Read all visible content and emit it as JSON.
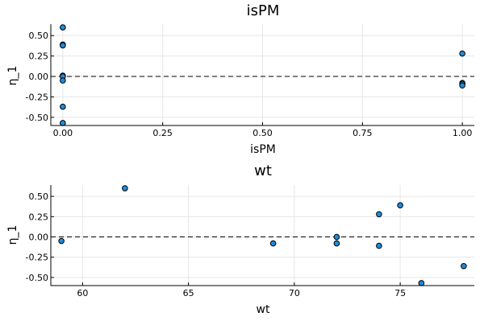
{
  "chart_data": [
    {
      "type": "scatter",
      "title": "isPM",
      "xlabel": "isPM",
      "ylabel": "η_1",
      "xlim": [
        -0.03,
        1.03
      ],
      "ylim": [
        -0.6,
        0.64
      ],
      "xticks": [
        0.0,
        0.25,
        0.5,
        0.75,
        1.0
      ],
      "xtick_labels": [
        "0.00",
        "0.25",
        "0.50",
        "0.75",
        "1.00"
      ],
      "yticks": [
        -0.5,
        -0.25,
        0.0,
        0.25,
        0.5
      ],
      "ytick_labels": [
        "-0.50",
        "-0.25",
        "0.00",
        "0.25",
        "0.50"
      ],
      "grid": true,
      "reference_line": 0,
      "x": [
        0,
        0,
        0,
        0,
        0,
        0,
        0,
        0,
        1,
        1,
        1,
        1
      ],
      "y": [
        0.6,
        0.39,
        0.38,
        0.01,
        0.0,
        -0.05,
        -0.37,
        -0.57,
        0.28,
        -0.08,
        -0.09,
        -0.11
      ]
    },
    {
      "type": "scatter",
      "title": "wt",
      "xlabel": "wt",
      "ylabel": "η_1",
      "xlim": [
        58.5,
        78.5
      ],
      "ylim": [
        -0.6,
        0.64
      ],
      "xticks": [
        60,
        65,
        70,
        75
      ],
      "xtick_labels": [
        "60",
        "65",
        "70",
        "75"
      ],
      "yticks": [
        -0.5,
        -0.25,
        0.0,
        0.25,
        0.5
      ],
      "ytick_labels": [
        "-0.50",
        "-0.25",
        "0.00",
        "0.25",
        "0.50"
      ],
      "grid": true,
      "reference_line": 0,
      "x": [
        59,
        62,
        69,
        72,
        72,
        74,
        74,
        75,
        76,
        78
      ],
      "y": [
        -0.05,
        0.6,
        -0.08,
        0.0,
        -0.08,
        0.28,
        -0.11,
        0.39,
        -0.57,
        -0.36
      ]
    }
  ]
}
